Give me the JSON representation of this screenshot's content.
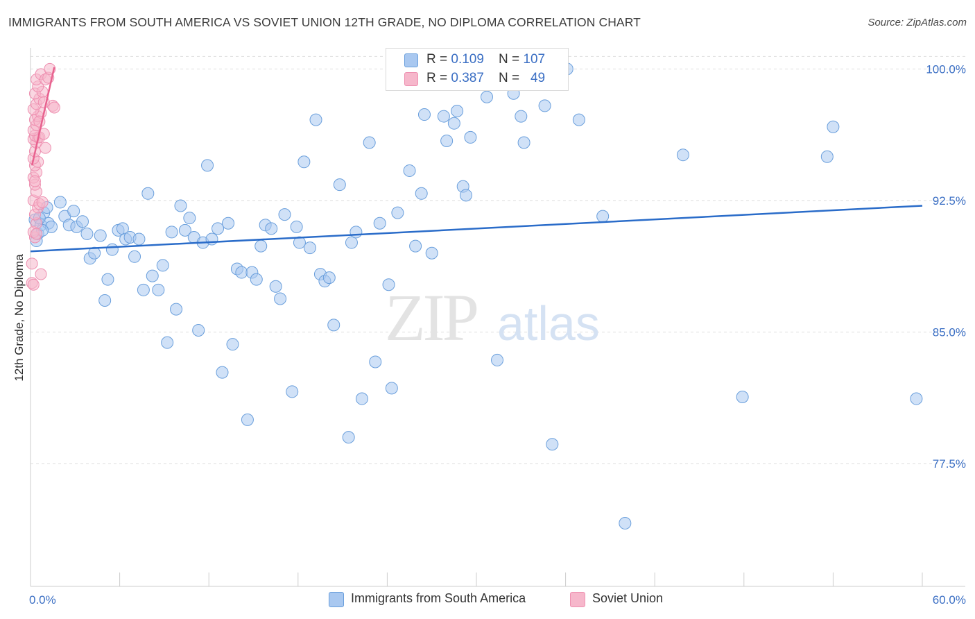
{
  "header": {
    "title": "IMMIGRANTS FROM SOUTH AMERICA VS SOVIET UNION 12TH GRADE, NO DIPLOMA CORRELATION CHART",
    "source": "Source: ZipAtlas.com"
  },
  "legend": {
    "series1": {
      "r_label": "R = ",
      "r_value": "0.109",
      "n_label": "N = ",
      "n_value": "107"
    },
    "series2": {
      "r_label": "R = ",
      "r_value": "0.387",
      "n_label": "N = ",
      "n_value": "49"
    }
  },
  "watermark": {
    "zip": "ZIP",
    "atlas": "atlas"
  },
  "colors": {
    "blue_fill": "#a9c8f0",
    "blue_stroke": "#6a9fdc",
    "blue_line": "#2a6cc9",
    "pink_fill": "#f6b7cb",
    "pink_stroke": "#ee8fb0",
    "pink_line": "#e8628f",
    "axis_label": "#3b6fc4",
    "grid": "#dddddd"
  },
  "chart_data": {
    "type": "scatter",
    "title": "IMMIGRANTS FROM SOUTH AMERICA VS SOVIET UNION 12TH GRADE, NO DIPLOMA CORRELATION CHART",
    "xlabel": "",
    "ylabel": "12th Grade, No Diploma",
    "xlim": [
      0,
      60
    ],
    "ylim": [
      70.5,
      101.2
    ],
    "x_tick_labels": [
      "0.0%",
      "60.0%"
    ],
    "y_ticks": [
      77.5,
      85.0,
      92.5,
      100.0
    ],
    "y_tick_labels": [
      "77.5%",
      "85.0%",
      "92.5%",
      "100.0%"
    ],
    "grid": true,
    "legend_position": "bottom",
    "series": [
      {
        "name": "Immigrants from South America",
        "color": "#a9c8f0",
        "r": 0.109,
        "n": 107,
        "trendline": {
          "x": [
            0,
            60
          ],
          "y": [
            89.6,
            92.2
          ]
        },
        "points": [
          [
            0.3,
            91.4
          ],
          [
            0.5,
            90.6
          ],
          [
            0.4,
            90.2
          ],
          [
            0.7,
            91.1
          ],
          [
            0.9,
            91.8
          ],
          [
            1.1,
            92.1
          ],
          [
            1.2,
            91.2
          ],
          [
            1.4,
            91.0
          ],
          [
            0.6,
            91.5
          ],
          [
            0.8,
            90.8
          ],
          [
            2.0,
            92.4
          ],
          [
            2.3,
            91.6
          ],
          [
            2.6,
            91.1
          ],
          [
            2.9,
            91.9
          ],
          [
            3.1,
            91.0
          ],
          [
            3.5,
            91.3
          ],
          [
            3.8,
            90.6
          ],
          [
            4.0,
            89.2
          ],
          [
            4.3,
            89.5
          ],
          [
            4.7,
            90.5
          ],
          [
            5.0,
            86.8
          ],
          [
            5.2,
            88.0
          ],
          [
            5.5,
            89.7
          ],
          [
            5.9,
            90.8
          ],
          [
            6.2,
            90.9
          ],
          [
            6.4,
            90.3
          ],
          [
            6.7,
            90.4
          ],
          [
            7.0,
            89.3
          ],
          [
            7.3,
            90.3
          ],
          [
            7.6,
            87.4
          ],
          [
            7.9,
            92.9
          ],
          [
            8.2,
            88.2
          ],
          [
            8.6,
            87.4
          ],
          [
            8.9,
            88.8
          ],
          [
            9.2,
            84.4
          ],
          [
            9.5,
            90.7
          ],
          [
            9.8,
            86.3
          ],
          [
            10.1,
            92.2
          ],
          [
            10.4,
            90.8
          ],
          [
            10.7,
            91.5
          ],
          [
            11.0,
            90.4
          ],
          [
            11.3,
            85.1
          ],
          [
            11.6,
            90.1
          ],
          [
            11.9,
            94.5
          ],
          [
            12.2,
            90.3
          ],
          [
            12.6,
            90.9
          ],
          [
            12.9,
            82.7
          ],
          [
            13.3,
            91.2
          ],
          [
            13.6,
            84.3
          ],
          [
            13.9,
            88.6
          ],
          [
            14.2,
            88.4
          ],
          [
            14.6,
            80.0
          ],
          [
            14.9,
            88.4
          ],
          [
            15.2,
            88.0
          ],
          [
            15.5,
            89.9
          ],
          [
            15.8,
            91.1
          ],
          [
            16.2,
            90.9
          ],
          [
            16.5,
            87.6
          ],
          [
            16.8,
            86.9
          ],
          [
            17.1,
            91.7
          ],
          [
            17.6,
            81.6
          ],
          [
            17.9,
            91.0
          ],
          [
            18.1,
            90.1
          ],
          [
            18.4,
            94.7
          ],
          [
            18.8,
            89.8
          ],
          [
            19.2,
            97.1
          ],
          [
            19.5,
            88.3
          ],
          [
            19.8,
            87.9
          ],
          [
            20.1,
            88.1
          ],
          [
            20.4,
            85.4
          ],
          [
            20.8,
            93.4
          ],
          [
            21.4,
            79.0
          ],
          [
            21.6,
            90.1
          ],
          [
            21.9,
            90.7
          ],
          [
            22.3,
            81.2
          ],
          [
            22.8,
            95.8
          ],
          [
            23.2,
            83.3
          ],
          [
            23.5,
            91.2
          ],
          [
            24.1,
            87.7
          ],
          [
            24.3,
            81.8
          ],
          [
            24.7,
            91.8
          ],
          [
            25.1,
            100.0
          ],
          [
            25.5,
            94.2
          ],
          [
            25.9,
            89.9
          ],
          [
            26.3,
            92.9
          ],
          [
            26.5,
            97.4
          ],
          [
            27.0,
            89.5
          ],
          [
            27.8,
            97.3
          ],
          [
            28.0,
            95.9
          ],
          [
            28.5,
            96.9
          ],
          [
            28.7,
            97.6
          ],
          [
            29.1,
            93.3
          ],
          [
            29.3,
            92.8
          ],
          [
            29.6,
            96.1
          ],
          [
            30.7,
            98.4
          ],
          [
            31.4,
            83.4
          ],
          [
            32.5,
            98.6
          ],
          [
            33.0,
            97.3
          ],
          [
            33.2,
            95.8
          ],
          [
            34.6,
            97.9
          ],
          [
            35.1,
            78.6
          ],
          [
            36.1,
            100.0
          ],
          [
            36.9,
            97.1
          ],
          [
            38.5,
            91.6
          ],
          [
            40.0,
            74.1
          ],
          [
            43.9,
            95.1
          ],
          [
            47.9,
            81.3
          ],
          [
            53.6,
            95.0
          ],
          [
            54.0,
            96.7
          ],
          [
            59.6,
            81.2
          ]
        ]
      },
      {
        "name": "Soviet Union",
        "color": "#f6b7cb",
        "r": 0.387,
        "n": 49,
        "trendline": {
          "x": [
            0.1,
            1.6
          ],
          "y": [
            94.5,
            100.1
          ]
        },
        "points": [
          [
            0.1,
            87.8
          ],
          [
            0.2,
            87.7
          ],
          [
            0.1,
            88.9
          ],
          [
            0.3,
            90.4
          ],
          [
            0.2,
            90.7
          ],
          [
            0.4,
            91.2
          ],
          [
            0.3,
            91.7
          ],
          [
            0.5,
            92.1
          ],
          [
            0.2,
            92.5
          ],
          [
            0.6,
            92.3
          ],
          [
            0.4,
            93.0
          ],
          [
            0.3,
            93.4
          ],
          [
            0.2,
            93.8
          ],
          [
            0.4,
            94.1
          ],
          [
            0.3,
            94.5
          ],
          [
            0.5,
            94.7
          ],
          [
            0.2,
            94.9
          ],
          [
            0.3,
            95.3
          ],
          [
            0.4,
            95.8
          ],
          [
            0.2,
            96.0
          ],
          [
            0.5,
            96.1
          ],
          [
            0.3,
            96.2
          ],
          [
            0.6,
            96.1
          ],
          [
            0.2,
            96.5
          ],
          [
            0.4,
            96.8
          ],
          [
            0.3,
            97.1
          ],
          [
            0.5,
            97.3
          ],
          [
            0.7,
            97.5
          ],
          [
            0.2,
            97.7
          ],
          [
            0.4,
            98.0
          ],
          [
            0.6,
            98.3
          ],
          [
            0.3,
            98.6
          ],
          [
            0.8,
            98.7
          ],
          [
            0.5,
            99.0
          ],
          [
            0.4,
            99.4
          ],
          [
            0.7,
            99.7
          ],
          [
            1.0,
            99.4
          ],
          [
            1.2,
            99.5
          ],
          [
            1.3,
            100.0
          ],
          [
            1.5,
            97.9
          ],
          [
            1.6,
            97.8
          ],
          [
            0.9,
            96.3
          ],
          [
            1.0,
            95.5
          ],
          [
            0.7,
            88.3
          ],
          [
            0.8,
            92.4
          ],
          [
            0.3,
            93.6
          ],
          [
            0.4,
            90.6
          ],
          [
            0.6,
            97.0
          ],
          [
            0.9,
            98.1
          ]
        ]
      }
    ]
  }
}
